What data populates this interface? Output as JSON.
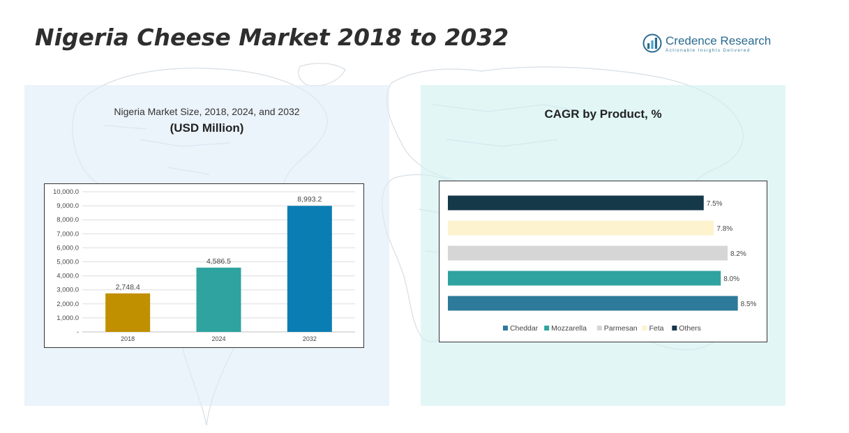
{
  "page": {
    "title": "Nigeria Cheese Market 2018 to 2032"
  },
  "logo": {
    "name": "Credence Research",
    "tagline": "Actionable Insights Delivered"
  },
  "left_panel": {
    "title": "Nigeria Market Size, 2018, 2024, and 2032",
    "subtitle": "(USD Million)"
  },
  "right_panel": {
    "title": "CAGR by Product, %"
  },
  "colors": {
    "bar_2018": "#c09000",
    "bar_2024": "#2fa39f",
    "bar_2032": "#0a7db3",
    "cheddar": "#2d7a9a",
    "mozzarella": "#2fa39f",
    "parmesan": "#d6d6d6",
    "feta": "#fdf3cf",
    "others": "#16394a"
  },
  "chart_data": [
    {
      "type": "bar",
      "categories": [
        "2018",
        "2024",
        "2032"
      ],
      "values": [
        2748.4,
        4586.5,
        8993.2
      ],
      "value_labels": [
        "2,748.4",
        "4,586.5",
        "8,993.2"
      ],
      "ylim": [
        0,
        10000
      ],
      "yticks": [
        "-",
        "1,000.0",
        "2,000.0",
        "3,000.0",
        "4,000.0",
        "5,000.0",
        "6,000.0",
        "7,000.0",
        "8,000.0",
        "9,000.0",
        "10,000.0"
      ],
      "grid": true,
      "legend": "none"
    },
    {
      "type": "bar",
      "orientation": "horizontal",
      "categories": [
        "Cheddar",
        "Mozzarella",
        "Parmesan",
        "Feta",
        "Others"
      ],
      "values": [
        8.5,
        8.0,
        8.2,
        7.8,
        7.5
      ],
      "value_labels": [
        "8.5%",
        "8.0%",
        "8.2%",
        "7.8%",
        "7.5%"
      ],
      "legend": "bottom",
      "legend_entries": [
        "Cheddar",
        "Mozzarella",
        "Parmesan",
        "Feta",
        "Others"
      ]
    }
  ]
}
